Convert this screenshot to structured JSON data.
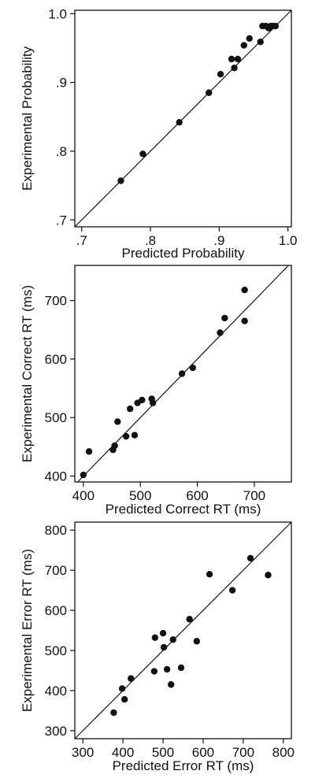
{
  "chart_data": [
    {
      "type": "scatter",
      "xlabel": "Predicted Probability",
      "ylabel": "Experimental Probability",
      "xlim": [
        0.69,
        1.005
      ],
      "ylim": [
        0.69,
        1.005
      ],
      "xticks": [
        0.7,
        0.8,
        0.9,
        1.0
      ],
      "xtick_labels": [
        ".7",
        ".8",
        ".9",
        "1.0"
      ],
      "yticks": [
        0.7,
        0.8,
        0.9,
        1.0
      ],
      "ytick_labels": [
        ".7",
        ".8",
        ".9",
        "1.0"
      ],
      "identity_line": true,
      "points": [
        {
          "x": 0.757,
          "y": 0.757
        },
        {
          "x": 0.789,
          "y": 0.796
        },
        {
          "x": 0.842,
          "y": 0.842
        },
        {
          "x": 0.885,
          "y": 0.885
        },
        {
          "x": 0.902,
          "y": 0.912
        },
        {
          "x": 0.918,
          "y": 0.934
        },
        {
          "x": 0.922,
          "y": 0.921
        },
        {
          "x": 0.927,
          "y": 0.934
        },
        {
          "x": 0.936,
          "y": 0.954
        },
        {
          "x": 0.944,
          "y": 0.964
        },
        {
          "x": 0.96,
          "y": 0.959
        },
        {
          "x": 0.963,
          "y": 0.982
        },
        {
          "x": 0.968,
          "y": 0.982
        },
        {
          "x": 0.972,
          "y": 0.979
        },
        {
          "x": 0.975,
          "y": 0.982
        },
        {
          "x": 0.978,
          "y": 0.982
        },
        {
          "x": 0.982,
          "y": 0.982
        }
      ]
    },
    {
      "type": "scatter",
      "xlabel": "Predicted Correct RT (ms)",
      "ylabel": "Experimental Correct RT (ms)",
      "xlim": [
        385,
        765
      ],
      "ylim": [
        390,
        760
      ],
      "xticks": [
        400,
        500,
        600,
        700
      ],
      "xtick_labels": [
        "400",
        "500",
        "600",
        "700"
      ],
      "yticks": [
        400,
        500,
        600,
        700
      ],
      "ytick_labels": [
        "400",
        "500",
        "600",
        "700"
      ],
      "identity_line": true,
      "points": [
        {
          "x": 400,
          "y": 402
        },
        {
          "x": 410,
          "y": 442
        },
        {
          "x": 452,
          "y": 445
        },
        {
          "x": 455,
          "y": 452
        },
        {
          "x": 460,
          "y": 493
        },
        {
          "x": 475,
          "y": 468
        },
        {
          "x": 482,
          "y": 515
        },
        {
          "x": 490,
          "y": 470
        },
        {
          "x": 495,
          "y": 525
        },
        {
          "x": 503,
          "y": 530
        },
        {
          "x": 520,
          "y": 532
        },
        {
          "x": 522,
          "y": 525
        },
        {
          "x": 573,
          "y": 575
        },
        {
          "x": 592,
          "y": 585
        },
        {
          "x": 640,
          "y": 645
        },
        {
          "x": 648,
          "y": 670
        },
        {
          "x": 683,
          "y": 718
        },
        {
          "x": 683,
          "y": 665
        }
      ]
    },
    {
      "type": "scatter",
      "xlabel": "Predicted Error RT (ms)",
      "ylabel": "Experimental Error RT (ms)",
      "xlim": [
        280,
        820
      ],
      "ylim": [
        280,
        820
      ],
      "xticks": [
        300,
        400,
        500,
        600,
        700,
        800
      ],
      "xtick_labels": [
        "300",
        "400",
        "500",
        "600",
        "700",
        "800"
      ],
      "yticks": [
        300,
        400,
        500,
        600,
        700,
        800
      ],
      "ytick_labels": [
        "300",
        "400",
        "500",
        "600",
        "700",
        "800"
      ],
      "identity_line": true,
      "points": [
        {
          "x": 377,
          "y": 345
        },
        {
          "x": 398,
          "y": 405
        },
        {
          "x": 404,
          "y": 378
        },
        {
          "x": 420,
          "y": 430
        },
        {
          "x": 478,
          "y": 448
        },
        {
          "x": 480,
          "y": 532
        },
        {
          "x": 500,
          "y": 543
        },
        {
          "x": 502,
          "y": 508
        },
        {
          "x": 510,
          "y": 453
        },
        {
          "x": 520,
          "y": 415
        },
        {
          "x": 525,
          "y": 527
        },
        {
          "x": 545,
          "y": 457
        },
        {
          "x": 566,
          "y": 578
        },
        {
          "x": 584,
          "y": 523
        },
        {
          "x": 616,
          "y": 690
        },
        {
          "x": 673,
          "y": 650
        },
        {
          "x": 718,
          "y": 730
        },
        {
          "x": 762,
          "y": 688
        }
      ]
    }
  ]
}
